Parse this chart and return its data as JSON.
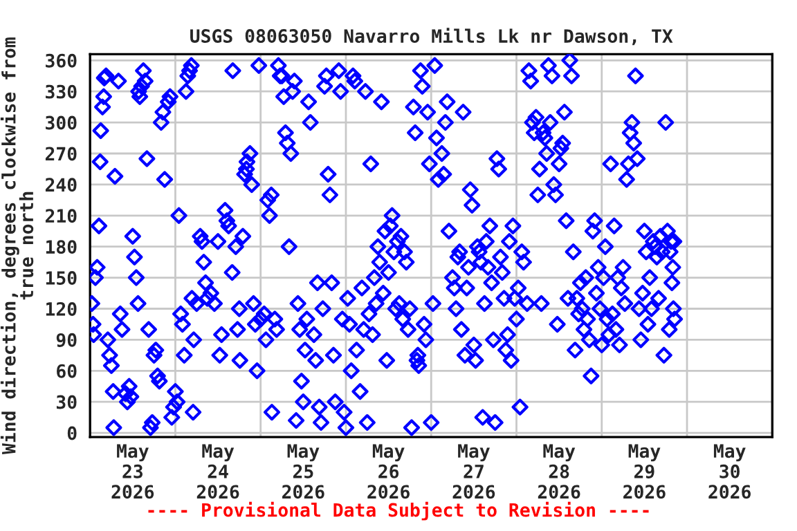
{
  "chart_data": {
    "type": "scatter",
    "title": "USGS 08063050 Navarro Mills Lk nr Dawson, TX",
    "ylabel": "Wind direction, degrees clockwise from\ntrue north",
    "annotations": [
      "---- Provisional Data Subject to Revision ----"
    ],
    "marker": "diamond",
    "grid": true,
    "legend": false,
    "xlim": [
      "2026-05-23T00:00",
      "2026-05-31T00:00"
    ],
    "xticks": [
      {
        "value": "2026-05-23T12:00",
        "label": "May\n23\n2026"
      },
      {
        "value": "2026-05-24T00:00",
        "label": null
      },
      {
        "value": "2026-05-24T12:00",
        "label": "May\n24\n2026"
      },
      {
        "value": "2026-05-25T00:00",
        "label": null
      },
      {
        "value": "2026-05-25T12:00",
        "label": "May\n25\n2026"
      },
      {
        "value": "2026-05-26T00:00",
        "label": null
      },
      {
        "value": "2026-05-26T12:00",
        "label": "May\n26\n2026"
      },
      {
        "value": "2026-05-27T00:00",
        "label": null
      },
      {
        "value": "2026-05-27T12:00",
        "label": "May\n27\n2026"
      },
      {
        "value": "2026-05-28T00:00",
        "label": null
      },
      {
        "value": "2026-05-28T12:00",
        "label": "May\n28\n2026"
      },
      {
        "value": "2026-05-29T00:00",
        "label": null
      },
      {
        "value": "2026-05-29T12:00",
        "label": "May\n29\n2026"
      },
      {
        "value": "2026-05-30T00:00",
        "label": null
      },
      {
        "value": "2026-05-30T12:00",
        "label": "May\n30\n2026"
      }
    ],
    "ylim": [
      -4,
      366
    ],
    "yticks": [
      0,
      30,
      60,
      90,
      120,
      150,
      180,
      210,
      240,
      270,
      300,
      330,
      360
    ],
    "series": [
      {
        "color": "#0000ff",
        "x": [
          "2026-05-23T00:30",
          "2026-05-23T00:50",
          "2026-05-23T01:00",
          "2026-05-23T01:30",
          "2026-05-23T02:00",
          "2026-05-23T02:30",
          "2026-05-23T02:50",
          "2026-05-23T03:00",
          "2026-05-23T03:30",
          "2026-05-23T03:50",
          "2026-05-23T04:00",
          "2026-05-23T04:30",
          "2026-05-23T05:00",
          "2026-05-23T05:30",
          "2026-05-23T06:00",
          "2026-05-23T06:30",
          "2026-05-23T06:40",
          "2026-05-23T07:00",
          "2026-05-23T08:00",
          "2026-05-23T08:30",
          "2026-05-23T09:00",
          "2026-05-23T10:00",
          "2026-05-23T10:30",
          "2026-05-23T11:00",
          "2026-05-23T11:30",
          "2026-05-23T12:00",
          "2026-05-23T12:30",
          "2026-05-23T13:00",
          "2026-05-23T13:30",
          "2026-05-23T13:40",
          "2026-05-23T14:00",
          "2026-05-23T14:30",
          "2026-05-23T15:00",
          "2026-05-23T15:30",
          "2026-05-23T16:00",
          "2026-05-23T16:30",
          "2026-05-23T17:00",
          "2026-05-23T17:30",
          "2026-05-23T18:00",
          "2026-05-23T18:30",
          "2026-05-23T19:00",
          "2026-05-23T19:30",
          "2026-05-23T20:00",
          "2026-05-23T20:30",
          "2026-05-23T21:00",
          "2026-05-23T22:00",
          "2026-05-23T22:30",
          "2026-05-23T23:00",
          "2026-05-23T23:30",
          "2026-05-24T00:00",
          "2026-05-24T00:30",
          "2026-05-24T01:00",
          "2026-05-24T01:30",
          "2026-05-24T02:00",
          "2026-05-24T02:30",
          "2026-05-24T03:00",
          "2026-05-24T03:30",
          "2026-05-24T04:00",
          "2026-05-24T04:30",
          "2026-05-24T04:40",
          "2026-05-24T05:00",
          "2026-05-24T05:10",
          "2026-05-24T06:00",
          "2026-05-24T07:00",
          "2026-05-24T07:30",
          "2026-05-24T08:00",
          "2026-05-24T08:30",
          "2026-05-24T09:00",
          "2026-05-24T10:00",
          "2026-05-24T11:00",
          "2026-05-24T12:00",
          "2026-05-24T12:30",
          "2026-05-24T13:00",
          "2026-05-24T14:00",
          "2026-05-24T14:30",
          "2026-05-24T15:00",
          "2026-05-24T16:00",
          "2026-05-24T16:10",
          "2026-05-24T17:00",
          "2026-05-24T17:30",
          "2026-05-24T18:00",
          "2026-05-24T18:10",
          "2026-05-24T19:00",
          "2026-05-24T19:30",
          "2026-05-24T20:00",
          "2026-05-24T20:10",
          "2026-05-24T21:00",
          "2026-05-24T21:30",
          "2026-05-24T22:00",
          "2026-05-24T22:30",
          "2026-05-24T23:00",
          "2026-05-24T23:30",
          "2026-05-25T00:00",
          "2026-05-25T01:00",
          "2026-05-25T01:30",
          "2026-05-25T02:00",
          "2026-05-25T02:30",
          "2026-05-25T03:00",
          "2026-05-25T03:10",
          "2026-05-25T04:00",
          "2026-05-25T04:30",
          "2026-05-25T05:00",
          "2026-05-25T05:30",
          "2026-05-25T06:00",
          "2026-05-25T06:30",
          "2026-05-25T07:00",
          "2026-05-25T07:30",
          "2026-05-25T08:00",
          "2026-05-25T08:30",
          "2026-05-25T09:00",
          "2026-05-25T09:30",
          "2026-05-25T10:00",
          "2026-05-25T10:30",
          "2026-05-25T11:00",
          "2026-05-25T11:30",
          "2026-05-25T12:00",
          "2026-05-25T12:30",
          "2026-05-25T13:00",
          "2026-05-25T13:30",
          "2026-05-25T14:00",
          "2026-05-25T15:00",
          "2026-05-25T15:30",
          "2026-05-25T16:00",
          "2026-05-25T16:30",
          "2026-05-25T17:00",
          "2026-05-25T17:30",
          "2026-05-25T18:00",
          "2026-05-25T18:30",
          "2026-05-25T19:00",
          "2026-05-25T19:30",
          "2026-05-25T20:00",
          "2026-05-25T20:30",
          "2026-05-25T21:00",
          "2026-05-25T22:00",
          "2026-05-25T22:30",
          "2026-05-25T23:00",
          "2026-05-25T23:30",
          "2026-05-26T00:00",
          "2026-05-26T00:30",
          "2026-05-26T01:00",
          "2026-05-26T01:30",
          "2026-05-26T02:00",
          "2026-05-26T02:30",
          "2026-05-26T03:00",
          "2026-05-26T04:00",
          "2026-05-26T04:30",
          "2026-05-26T05:00",
          "2026-05-26T05:30",
          "2026-05-26T06:00",
          "2026-05-26T06:30",
          "2026-05-26T07:00",
          "2026-05-26T07:30",
          "2026-05-26T08:00",
          "2026-05-26T08:30",
          "2026-05-26T09:00",
          "2026-05-26T09:30",
          "2026-05-26T10:00",
          "2026-05-26T10:30",
          "2026-05-26T11:00",
          "2026-05-26T11:30",
          "2026-05-26T12:00",
          "2026-05-26T12:30",
          "2026-05-26T13:00",
          "2026-05-26T13:30",
          "2026-05-26T14:00",
          "2026-05-26T14:30",
          "2026-05-26T15:00",
          "2026-05-26T15:30",
          "2026-05-26T16:00",
          "2026-05-26T16:30",
          "2026-05-26T17:00",
          "2026-05-26T17:30",
          "2026-05-26T18:00",
          "2026-05-26T18:30",
          "2026-05-26T19:00",
          "2026-05-26T19:30",
          "2026-05-26T20:00",
          "2026-05-26T20:15",
          "2026-05-26T20:30",
          "2026-05-26T21:00",
          "2026-05-26T21:30",
          "2026-05-26T22:00",
          "2026-05-26T22:30",
          "2026-05-26T23:00",
          "2026-05-26T23:30",
          "2026-05-27T00:00",
          "2026-05-27T00:30",
          "2026-05-27T01:00",
          "2026-05-27T01:30",
          "2026-05-27T02:00",
          "2026-05-27T03:00",
          "2026-05-27T03:30",
          "2026-05-27T04:00",
          "2026-05-27T04:30",
          "2026-05-27T05:00",
          "2026-05-27T06:00",
          "2026-05-27T06:30",
          "2026-05-27T07:00",
          "2026-05-27T07:30",
          "2026-05-27T08:00",
          "2026-05-27T08:30",
          "2026-05-27T09:00",
          "2026-05-27T09:30",
          "2026-05-27T10:00",
          "2026-05-27T10:30",
          "2026-05-27T11:00",
          "2026-05-27T11:30",
          "2026-05-27T12:00",
          "2026-05-27T12:30",
          "2026-05-27T13:00",
          "2026-05-27T13:30",
          "2026-05-27T14:00",
          "2026-05-27T14:30",
          "2026-05-27T15:00",
          "2026-05-27T15:30",
          "2026-05-27T16:00",
          "2026-05-27T16:30",
          "2026-05-27T17:00",
          "2026-05-27T17:30",
          "2026-05-27T18:00",
          "2026-05-27T18:30",
          "2026-05-27T19:00",
          "2026-05-27T19:30",
          "2026-05-27T20:00",
          "2026-05-27T20:30",
          "2026-05-27T21:00",
          "2026-05-27T21:30",
          "2026-05-27T22:00",
          "2026-05-27T22:30",
          "2026-05-27T23:00",
          "2026-05-27T23:30",
          "2026-05-28T00:00",
          "2026-05-28T00:30",
          "2026-05-28T01:00",
          "2026-05-28T01:30",
          "2026-05-28T02:00",
          "2026-05-28T03:00",
          "2026-05-28T03:30",
          "2026-05-28T04:00",
          "2026-05-28T04:30",
          "2026-05-28T05:00",
          "2026-05-28T05:30",
          "2026-05-28T06:00",
          "2026-05-28T06:30",
          "2026-05-28T07:00",
          "2026-05-28T07:30",
          "2026-05-28T08:00",
          "2026-05-28T08:30",
          "2026-05-28T09:00",
          "2026-05-28T09:30",
          "2026-05-28T10:00",
          "2026-05-28T10:30",
          "2026-05-28T11:00",
          "2026-05-28T11:30",
          "2026-05-28T12:00",
          "2026-05-28T12:30",
          "2026-05-28T13:00",
          "2026-05-28T13:30",
          "2026-05-28T14:00",
          "2026-05-28T14:30",
          "2026-05-28T15:00",
          "2026-05-28T15:30",
          "2026-05-28T16:00",
          "2026-05-28T16:30",
          "2026-05-28T17:00",
          "2026-05-28T17:30",
          "2026-05-28T18:00",
          "2026-05-28T18:30",
          "2026-05-28T19:00",
          "2026-05-28T19:30",
          "2026-05-28T20:00",
          "2026-05-28T20:30",
          "2026-05-28T21:00",
          "2026-05-28T21:30",
          "2026-05-28T22:00",
          "2026-05-28T22:30",
          "2026-05-28T23:00",
          "2026-05-28T23:30",
          "2026-05-29T00:00",
          "2026-05-29T00:30",
          "2026-05-29T01:00",
          "2026-05-29T01:30",
          "2026-05-29T02:00",
          "2026-05-29T02:30",
          "2026-05-29T03:00",
          "2026-05-29T03:30",
          "2026-05-29T04:00",
          "2026-05-29T04:30",
          "2026-05-29T05:00",
          "2026-05-29T05:30",
          "2026-05-29T06:00",
          "2026-05-29T06:30",
          "2026-05-29T07:00",
          "2026-05-29T07:30",
          "2026-05-29T08:00",
          "2026-05-29T08:30",
          "2026-05-29T09:00",
          "2026-05-29T09:30",
          "2026-05-29T10:00",
          "2026-05-29T10:30",
          "2026-05-29T11:00",
          "2026-05-29T11:30",
          "2026-05-29T12:00",
          "2026-05-29T12:30",
          "2026-05-29T13:00",
          "2026-05-29T13:30",
          "2026-05-29T14:00",
          "2026-05-29T14:30",
          "2026-05-29T15:00",
          "2026-05-29T15:30",
          "2026-05-29T16:00",
          "2026-05-29T16:30",
          "2026-05-29T17:00",
          "2026-05-29T17:30",
          "2026-05-29T18:00",
          "2026-05-29T18:30",
          "2026-05-29T19:00",
          "2026-05-29T19:15",
          "2026-05-29T19:30",
          "2026-05-29T19:45",
          "2026-05-29T20:00",
          "2026-05-29T20:10",
          "2026-05-29T20:20",
          "2026-05-29T20:30"
        ],
        "values": [
          125,
          105,
          95,
          150,
          160,
          200,
          262,
          292,
          315,
          325,
          343,
          345,
          90,
          75,
          65,
          40,
          5,
          248,
          340,
          115,
          100,
          38,
          30,
          45,
          35,
          190,
          170,
          150,
          125,
          330,
          325,
          335,
          350,
          340,
          265,
          100,
          5,
          10,
          75,
          80,
          55,
          50,
          300,
          310,
          245,
          320,
          325,
          15,
          25,
          40,
          30,
          210,
          115,
          105,
          75,
          330,
          345,
          350,
          355,
          130,
          20,
          90,
          125,
          190,
          185,
          165,
          145,
          130,
          135,
          125,
          185,
          75,
          95,
          215,
          205,
          200,
          155,
          350,
          180,
          100,
          120,
          70,
          190,
          250,
          255,
          262,
          270,
          240,
          125,
          105,
          60,
          355,
          110,
          115,
          90,
          225,
          210,
          230,
          20,
          110,
          100,
          355,
          345,
          345,
          325,
          290,
          280,
          180,
          270,
          330,
          340,
          12,
          125,
          100,
          50,
          30,
          80,
          110,
          320,
          300,
          95,
          70,
          145,
          25,
          10,
          120,
          335,
          345,
          250,
          230,
          145,
          75,
          30,
          350,
          330,
          110,
          20,
          5,
          130,
          105,
          60,
          345,
          340,
          80,
          40,
          140,
          100,
          330,
          10,
          115,
          260,
          95,
          150,
          125,
          180,
          165,
          320,
          135,
          195,
          70,
          155,
          200,
          210,
          175,
          120,
          185,
          125,
          190,
          110,
          175,
          165,
          100,
          120,
          5,
          315,
          290,
          70,
          75,
          65,
          350,
          335,
          105,
          90,
          310,
          260,
          10,
          125,
          355,
          285,
          245,
          270,
          250,
          300,
          320,
          195,
          150,
          140,
          120,
          170,
          175,
          100,
          310,
          75,
          140,
          160,
          235,
          220,
          85,
          70,
          180,
          175,
          165,
          15,
          125,
          185,
          160,
          200,
          145,
          90,
          10,
          265,
          255,
          170,
          155,
          130,
          80,
          95,
          185,
          70,
          200,
          130,
          110,
          140,
          25,
          175,
          165,
          125,
          350,
          340,
          300,
          290,
          305,
          230,
          255,
          125,
          290,
          285,
          270,
          355,
          300,
          345,
          240,
          230,
          105,
          260,
          275,
          280,
          310,
          205,
          130,
          360,
          345,
          175,
          80,
          130,
          115,
          145,
          120,
          100,
          150,
          110,
          90,
          55,
          195,
          205,
          135,
          160,
          120,
          85,
          150,
          180,
          110,
          95,
          260,
          115,
          200,
          100,
          150,
          85,
          140,
          160,
          125,
          245,
          260,
          290,
          300,
          280,
          345,
          265,
          120,
          90,
          135,
          195,
          175,
          105,
          150,
          120,
          185,
          180,
          170,
          130,
          190,
          175,
          75,
          300,
          195,
          100,
          175,
          185,
          145,
          160,
          120,
          185,
          110
        ]
      }
    ]
  }
}
